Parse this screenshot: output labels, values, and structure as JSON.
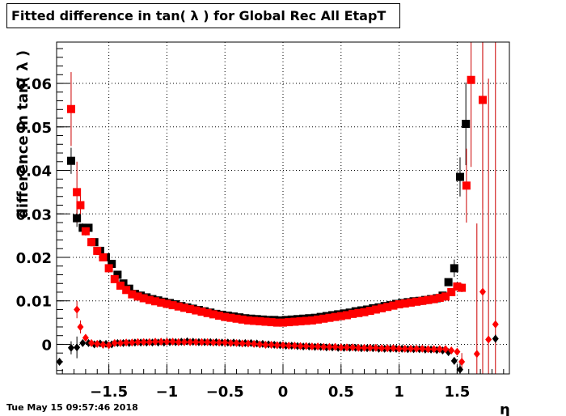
{
  "title": "Fitted difference in tan( λ ) for Global Rec All EtapT",
  "timestamp": "Tue May 15 09:57:46 2018",
  "chart_data": {
    "type": "scatter",
    "title": "Fitted difference in tan( λ ) for Global Rec All EtapT",
    "xlabel": "η",
    "ylabel": "difference in tan( λ )",
    "xlim": [
      -1.95,
      1.95
    ],
    "ylim": [
      -0.0068,
      0.0695
    ],
    "grid": true,
    "xticks": [
      -1.5,
      -1,
      -0.5,
      0,
      0.5,
      1,
      1.5
    ],
    "xtick_labels": [
      "−1.5",
      "−1",
      "−0.5",
      "0",
      "0.5",
      "1",
      "1.5"
    ],
    "yticks": [
      0,
      0.01,
      0.02,
      0.03,
      0.04,
      0.05,
      0.06
    ],
    "ytick_labels": [
      "0",
      "0.01",
      "0.02",
      "0.03",
      "0.04",
      "0.05",
      "0.06"
    ],
    "colors": {
      "black": "#000000",
      "red": "#ff0000",
      "red_err": "#cc0000"
    },
    "series": [
      {
        "marker": "square",
        "color": "#000000",
        "x": [
          -1.825,
          -1.775,
          -1.725,
          -1.675,
          -1.625,
          -1.575,
          -1.525,
          -1.475,
          -1.425,
          -1.375,
          -1.325,
          -1.275,
          -1.225,
          -1.175,
          -1.125,
          -1.075,
          -1.025,
          -0.975,
          -0.925,
          -0.875,
          -0.825,
          -0.775,
          -0.725,
          -0.675,
          -0.625,
          -0.575,
          -0.525,
          -0.475,
          -0.425,
          -0.375,
          -0.325,
          -0.275,
          -0.225,
          -0.175,
          -0.125,
          -0.075,
          -0.025,
          0.025,
          0.075,
          0.125,
          0.175,
          0.225,
          0.275,
          0.325,
          0.375,
          0.425,
          0.475,
          0.525,
          0.575,
          0.625,
          0.675,
          0.725,
          0.775,
          0.825,
          0.875,
          0.925,
          0.975,
          1.025,
          1.075,
          1.125,
          1.175,
          1.225,
          1.275,
          1.325,
          1.375,
          1.425,
          1.475,
          1.525,
          1.575
        ],
        "y": [
          0.0422,
          0.029,
          0.0268,
          0.0268,
          0.0235,
          0.0215,
          0.02,
          0.0185,
          0.016,
          0.014,
          0.0128,
          0.0116,
          0.0112,
          0.0108,
          0.0104,
          0.0101,
          0.0098,
          0.0095,
          0.0092,
          0.0088,
          0.0085,
          0.0082,
          0.0079,
          0.0076,
          0.0073,
          0.007,
          0.0068,
          0.0066,
          0.0064,
          0.0062,
          0.006,
          0.0059,
          0.0058,
          0.0057,
          0.0056,
          0.0056,
          0.0055,
          0.0056,
          0.0057,
          0.0058,
          0.0059,
          0.006,
          0.0061,
          0.0063,
          0.0065,
          0.0067,
          0.0069,
          0.0071,
          0.0073,
          0.0076,
          0.0078,
          0.008,
          0.0083,
          0.0085,
          0.0088,
          0.009,
          0.0093,
          0.0095,
          0.0097,
          0.0099,
          0.01,
          0.0102,
          0.0104,
          0.0106,
          0.0112,
          0.0143,
          0.0175,
          0.0385,
          0.0507
        ],
        "err": [
          0.003,
          0.002,
          0.001,
          0.0006,
          0,
          0,
          0,
          0,
          0,
          0,
          0,
          0,
          0,
          0,
          0,
          0,
          0,
          0,
          0,
          0,
          0,
          0,
          0,
          0,
          0,
          0,
          0,
          0,
          0,
          0,
          0,
          0,
          0,
          0,
          0,
          0,
          0,
          0,
          0,
          0,
          0,
          0,
          0,
          0,
          0,
          0,
          0,
          0,
          0,
          0,
          0,
          0,
          0,
          0,
          0,
          0,
          0,
          0,
          0,
          0,
          0,
          0,
          0,
          0,
          0,
          0.0006,
          0.002,
          0.0045,
          0.0095
        ]
      },
      {
        "marker": "square",
        "color": "#ff0000",
        "x": [
          -1.825,
          -1.775,
          -1.745,
          -1.7,
          -1.65,
          -1.6,
          -1.55,
          -1.5,
          -1.45,
          -1.4,
          -1.35,
          -1.3,
          -1.25,
          -1.2,
          -1.15,
          -1.1,
          -1.05,
          -1.0,
          -0.95,
          -0.9,
          -0.85,
          -0.8,
          -0.75,
          -0.7,
          -0.65,
          -0.6,
          -0.55,
          -0.5,
          -0.45,
          -0.4,
          -0.35,
          -0.3,
          -0.25,
          -0.2,
          -0.15,
          -0.1,
          -0.05,
          0.0,
          0.05,
          0.1,
          0.15,
          0.2,
          0.25,
          0.3,
          0.35,
          0.4,
          0.45,
          0.5,
          0.55,
          0.6,
          0.65,
          0.7,
          0.75,
          0.8,
          0.85,
          0.9,
          0.95,
          1.0,
          1.05,
          1.1,
          1.15,
          1.2,
          1.25,
          1.3,
          1.35,
          1.4,
          1.45,
          1.5,
          1.54,
          1.58,
          1.62,
          1.72
        ],
        "y": [
          0.0541,
          0.035,
          0.032,
          0.026,
          0.0235,
          0.0215,
          0.02,
          0.0175,
          0.015,
          0.0135,
          0.0125,
          0.0115,
          0.011,
          0.0106,
          0.0102,
          0.0099,
          0.0096,
          0.0093,
          0.009,
          0.0087,
          0.0084,
          0.0081,
          0.0078,
          0.0075,
          0.0072,
          0.0069,
          0.0066,
          0.0063,
          0.0061,
          0.0059,
          0.0057,
          0.0055,
          0.0054,
          0.0053,
          0.0052,
          0.0051,
          0.005,
          0.005,
          0.0051,
          0.0052,
          0.0053,
          0.0054,
          0.0055,
          0.0057,
          0.0059,
          0.0061,
          0.0063,
          0.0065,
          0.0067,
          0.007,
          0.0072,
          0.0074,
          0.0077,
          0.008,
          0.0083,
          0.0086,
          0.0089,
          0.0092,
          0.0094,
          0.0096,
          0.0098,
          0.01,
          0.0102,
          0.0104,
          0.0107,
          0.011,
          0.012,
          0.0133,
          0.013,
          0.0365,
          0.0608,
          0.0562
        ],
        "err": [
          0.0085,
          0.007,
          0.003,
          0.001,
          0,
          0,
          0,
          0,
          0,
          0,
          0,
          0,
          0,
          0,
          0,
          0,
          0,
          0,
          0,
          0,
          0,
          0,
          0,
          0,
          0,
          0,
          0,
          0,
          0,
          0,
          0,
          0,
          0,
          0,
          0,
          0,
          0,
          0,
          0,
          0,
          0,
          0,
          0,
          0,
          0,
          0,
          0,
          0,
          0,
          0,
          0,
          0,
          0,
          0,
          0,
          0,
          0,
          0,
          0,
          0,
          0,
          0,
          0,
          0,
          0,
          0,
          0,
          0.0005,
          0.001,
          0.0085,
          0.02,
          0.025
        ]
      },
      {
        "marker": "diamond",
        "color": "#000000",
        "x": [
          -1.925,
          -1.825,
          -1.775,
          -1.725,
          -1.675,
          -1.625,
          -1.575,
          -1.525,
          -1.475,
          -1.425,
          -1.375,
          -1.325,
          -1.275,
          -1.225,
          -1.175,
          -1.125,
          -1.075,
          -1.025,
          -0.975,
          -0.925,
          -0.875,
          -0.825,
          -0.775,
          -0.725,
          -0.675,
          -0.625,
          -0.575,
          -0.525,
          -0.475,
          -0.425,
          -0.375,
          -0.325,
          -0.275,
          -0.225,
          -0.175,
          -0.125,
          -0.075,
          -0.025,
          0.025,
          0.075,
          0.125,
          0.175,
          0.225,
          0.275,
          0.325,
          0.375,
          0.425,
          0.475,
          0.525,
          0.575,
          0.625,
          0.675,
          0.725,
          0.775,
          0.825,
          0.875,
          0.925,
          0.975,
          1.025,
          1.075,
          1.125,
          1.175,
          1.225,
          1.275,
          1.325,
          1.375,
          1.425,
          1.475,
          1.525,
          1.83
        ],
        "y": [
          -0.004,
          -0.0008,
          -0.0007,
          0.0003,
          0.0003,
          0.0,
          0.0002,
          0.0001,
          0.0,
          0.0003,
          0.0003,
          0.0003,
          0.0004,
          0.0004,
          0.0004,
          0.0004,
          0.0004,
          0.0004,
          0.0005,
          0.0005,
          0.0006,
          0.0007,
          0.0006,
          0.0005,
          0.0005,
          0.0005,
          0.0005,
          0.0004,
          0.0004,
          0.0004,
          0.0003,
          0.0003,
          0.0003,
          0.0002,
          0.0001,
          0.0,
          -0.0001,
          -0.0002,
          -0.0003,
          -0.0003,
          -0.0004,
          -0.0005,
          -0.0005,
          -0.0006,
          -0.0006,
          -0.0007,
          -0.0007,
          -0.0008,
          -0.0008,
          -0.0008,
          -0.0008,
          -0.0009,
          -0.0009,
          -0.0009,
          -0.001,
          -0.001,
          -0.001,
          -0.001,
          -0.001,
          -0.0011,
          -0.0011,
          -0.0011,
          -0.0012,
          -0.0012,
          -0.0013,
          -0.0014,
          -0.0018,
          -0.0038,
          -0.0058,
          0.0013
        ],
        "err": [
          0,
          0.0015,
          0.0025,
          0,
          0,
          0,
          0,
          0,
          0,
          0,
          0,
          0,
          0,
          0,
          0,
          0,
          0,
          0,
          0,
          0,
          0,
          0,
          0,
          0,
          0,
          0,
          0,
          0,
          0,
          0,
          0,
          0,
          0,
          0,
          0,
          0,
          0,
          0,
          0,
          0,
          0,
          0,
          0,
          0,
          0,
          0,
          0,
          0,
          0,
          0,
          0,
          0,
          0,
          0,
          0,
          0,
          0,
          0,
          0,
          0,
          0,
          0,
          0,
          0,
          0,
          0,
          0,
          0.0008,
          0.0015,
          0.001
        ]
      },
      {
        "marker": "diamond",
        "color": "#ff0000",
        "x": [
          -1.775,
          -1.745,
          -1.7,
          -1.65,
          -1.6,
          -1.55,
          -1.5,
          -1.45,
          -1.4,
          -1.35,
          -1.3,
          -1.25,
          -1.2,
          -1.15,
          -1.1,
          -1.05,
          -1.0,
          -0.95,
          -0.9,
          -0.85,
          -0.8,
          -0.75,
          -0.7,
          -0.65,
          -0.6,
          -0.55,
          -0.5,
          -0.45,
          -0.4,
          -0.35,
          -0.3,
          -0.25,
          -0.2,
          -0.15,
          -0.1,
          -0.05,
          0.0,
          0.05,
          0.1,
          0.15,
          0.2,
          0.25,
          0.3,
          0.35,
          0.4,
          0.45,
          0.5,
          0.55,
          0.6,
          0.65,
          0.7,
          0.75,
          0.8,
          0.85,
          0.9,
          0.95,
          1.0,
          1.05,
          1.1,
          1.15,
          1.2,
          1.25,
          1.3,
          1.35,
          1.4,
          1.45,
          1.5,
          1.54,
          1.67,
          1.72,
          1.77,
          1.83
        ],
        "y": [
          0.008,
          0.004,
          0.0015,
          0.0003,
          0.0001,
          -0.0001,
          -0.0002,
          0.0003,
          0.0003,
          0.0004,
          0.0004,
          0.0005,
          0.0005,
          0.0005,
          0.0006,
          0.0006,
          0.0006,
          0.0006,
          0.0005,
          0.0005,
          0.0005,
          0.0005,
          0.0005,
          0.0005,
          0.0004,
          0.0004,
          0.0004,
          0.0003,
          0.0003,
          0.0002,
          0.0002,
          0.0001,
          0.0,
          -0.0001,
          -0.0001,
          -0.0002,
          -0.0002,
          -0.0003,
          -0.0003,
          -0.0004,
          -0.0004,
          -0.0005,
          -0.0005,
          -0.0006,
          -0.0006,
          -0.0006,
          -0.0007,
          -0.0007,
          -0.0007,
          -0.0008,
          -0.0008,
          -0.0008,
          -0.0008,
          -0.0009,
          -0.0009,
          -0.0009,
          -0.001,
          -0.001,
          -0.001,
          -0.001,
          -0.001,
          -0.0011,
          -0.0011,
          -0.0011,
          -0.0011,
          -0.0014,
          -0.0017,
          -0.004,
          -0.0022,
          0.0121,
          0.0011,
          0.0046
        ],
        "err": [
          0.002,
          0.0015,
          0.0008,
          0,
          0,
          0,
          0,
          0,
          0,
          0,
          0,
          0,
          0,
          0,
          0,
          0,
          0,
          0,
          0,
          0,
          0,
          0,
          0,
          0,
          0,
          0,
          0,
          0,
          0,
          0,
          0,
          0,
          0,
          0,
          0,
          0,
          0,
          0,
          0,
          0,
          0,
          0,
          0,
          0,
          0,
          0,
          0,
          0,
          0,
          0,
          0,
          0,
          0,
          0,
          0,
          0,
          0,
          0,
          0,
          0,
          0,
          0,
          0,
          0,
          0,
          0,
          0,
          0.002,
          0.03,
          0.07,
          0.06,
          0.07
        ]
      }
    ]
  }
}
